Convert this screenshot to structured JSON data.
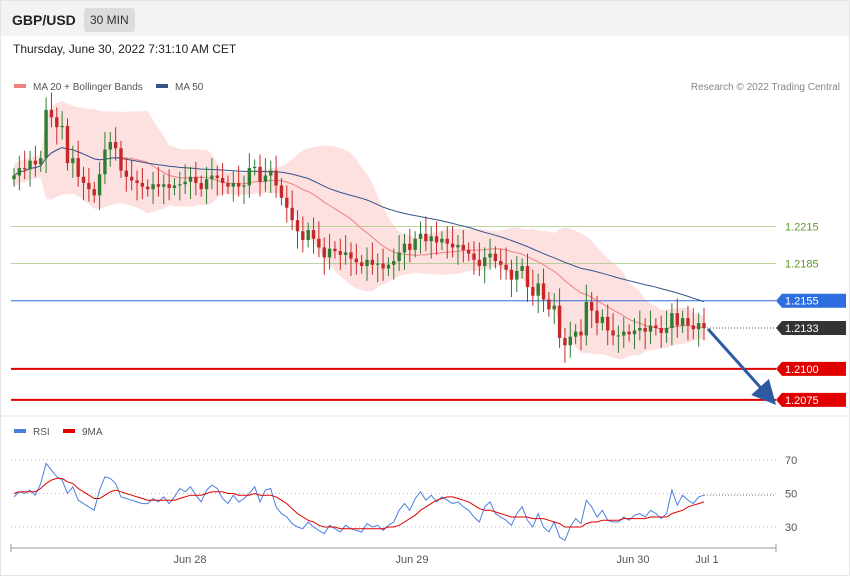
{
  "header": {
    "symbol": "GBP/USD",
    "timeframe": "30 MIN",
    "datetime": "Thursday, June 30, 2022 7:31:10 AM CET"
  },
  "legend_top": [
    {
      "label": "MA 20 + Bollinger Bands",
      "color": "#f08080"
    },
    {
      "label": "MA 50",
      "color": "#34558b"
    }
  ],
  "credit": "Research © 2022 Trading Central",
  "legend_bottom": [
    {
      "label": "RSI",
      "color": "#4a7fe0"
    },
    {
      "label": "9MA",
      "color": "#e00000"
    }
  ],
  "colors": {
    "bull": "#2e7d32",
    "bear": "#c62828",
    "band_fill": "#fde0e0",
    "ma20": "#f08080",
    "ma50": "#34558b",
    "level_green": "#a5c97f",
    "level_blue": "#2e6de0",
    "level_red": "#e00000",
    "current_price": "#333333",
    "arrow": "#2d5aa0"
  },
  "chart_data": [
    {
      "type": "candlestick",
      "title": "GBP/USD 30 MIN",
      "ylim": [
        1.2062,
        1.2325
      ],
      "x_ticks": [
        "Jun 28",
        "Jun 29",
        "Jun 30",
        "Jul 1"
      ],
      "levels": [
        {
          "value": 1.2215,
          "label": "1.2215",
          "style": "green-thin"
        },
        {
          "value": 1.2185,
          "label": "1.2185",
          "style": "green-thin"
        },
        {
          "value": 1.2155,
          "label": "1.2155",
          "style": "blue"
        },
        {
          "value": 1.21,
          "label": "1.2100",
          "style": "red-thick"
        },
        {
          "value": 1.2075,
          "label": "1.2075",
          "style": "red-thick"
        }
      ],
      "current_price": {
        "value": 1.2133,
        "label": "1.2133"
      },
      "forecast_arrow": {
        "from": 1.2133,
        "to": 1.2075
      },
      "series": [
        {
          "name": "MA 20 + Bollinger Bands"
        },
        {
          "name": "MA 50"
        }
      ],
      "close_path": [
        1.2256,
        1.2262,
        1.2261,
        1.2268,
        1.2265,
        1.227,
        1.2309,
        1.2303,
        1.2295,
        1.2296,
        1.2266,
        1.227,
        1.2255,
        1.225,
        1.2245,
        1.224,
        1.2257,
        1.2277,
        1.2283,
        1.2278,
        1.226,
        1.2255,
        1.2252,
        1.225,
        1.2247,
        1.2245,
        1.2249,
        1.2247,
        1.2249,
        1.2246,
        1.2248,
        1.2249,
        1.2251,
        1.2255,
        1.225,
        1.2245,
        1.2253,
        1.2256,
        1.2254,
        1.225,
        1.2247,
        1.225,
        1.2247,
        1.2248,
        1.2262,
        1.2263,
        1.2251,
        1.2256,
        1.226,
        1.2248,
        1.2238,
        1.223,
        1.222,
        1.2211,
        1.2204,
        1.2212,
        1.2205,
        1.2198,
        1.219,
        1.2197,
        1.2195,
        1.2192,
        1.2194,
        1.2189,
        1.2186,
        1.2183,
        1.2188,
        1.2184,
        1.2185,
        1.2181,
        1.2184,
        1.2187,
        1.2194,
        1.2201,
        1.2196,
        1.2205,
        1.2209,
        1.2203,
        1.2207,
        1.2202,
        1.2205,
        1.2201,
        1.2198,
        1.22,
        1.2196,
        1.2193,
        1.2188,
        1.2183,
        1.219,
        1.2193,
        1.2187,
        1.2184,
        1.218,
        1.2172,
        1.2179,
        1.2183,
        1.2166,
        1.2159,
        1.2169,
        1.2156,
        1.2148,
        1.2151,
        1.2125,
        1.2119,
        1.2126,
        1.213,
        1.2127,
        1.2154,
        1.2147,
        1.2137,
        1.2142,
        1.2131,
        1.2127,
        1.2127,
        1.213,
        1.2128,
        1.2131,
        1.2133,
        1.213,
        1.2135,
        1.2133,
        1.2129,
        1.2133,
        1.2145,
        1.2135,
        1.2141,
        1.2135,
        1.2132,
        1.2137,
        1.2133
      ]
    },
    {
      "type": "line",
      "title": "RSI",
      "ylim": [
        20,
        80
      ],
      "y_ticks": [
        {
          "value": 70,
          "label": "70"
        },
        {
          "value": 50,
          "label": "50"
        },
        {
          "value": 30,
          "label": "30"
        }
      ],
      "series": [
        {
          "name": "RSI",
          "values": [
            48,
            51,
            50,
            52,
            49,
            56,
            68,
            64,
            60,
            58,
            50,
            54,
            46,
            44,
            42,
            40,
            52,
            60,
            59,
            56,
            48,
            47,
            46,
            45,
            44,
            44,
            47,
            45,
            48,
            44,
            48,
            53,
            51,
            54,
            49,
            45,
            52,
            55,
            53,
            47,
            44,
            49,
            45,
            47,
            50,
            54,
            45,
            52,
            53,
            42,
            38,
            36,
            32,
            30,
            29,
            33,
            30,
            28,
            26,
            31,
            29,
            27,
            31,
            29,
            28,
            27,
            32,
            30,
            31,
            28,
            31,
            33,
            40,
            44,
            40,
            47,
            51,
            46,
            49,
            45,
            48,
            46,
            44,
            45,
            42,
            40,
            36,
            33,
            42,
            45,
            38,
            36,
            34,
            31,
            38,
            42,
            34,
            30,
            38,
            30,
            27,
            33,
            24,
            22,
            30,
            35,
            32,
            46,
            42,
            36,
            40,
            34,
            33,
            33,
            36,
            34,
            37,
            38,
            36,
            40,
            38,
            35,
            38,
            52,
            43,
            49,
            46,
            44,
            48,
            49
          ]
        },
        {
          "name": "9MA",
          "values": [
            50,
            51,
            51,
            51,
            51,
            53,
            56,
            58,
            59,
            59,
            57,
            56,
            53,
            51,
            49,
            47,
            47,
            49,
            51,
            52,
            51,
            50,
            49,
            48,
            47,
            46,
            46,
            46,
            46,
            46,
            46,
            47,
            48,
            49,
            49,
            49,
            50,
            51,
            51,
            51,
            50,
            50,
            49,
            49,
            49,
            50,
            49,
            49,
            49,
            48,
            46,
            44,
            41,
            38,
            36,
            34,
            33,
            31,
            30,
            30,
            30,
            29,
            29,
            29,
            29,
            29,
            29,
            29,
            29,
            29,
            30,
            30,
            31,
            33,
            35,
            37,
            40,
            42,
            44,
            46,
            47,
            48,
            48,
            47,
            46,
            45,
            43,
            41,
            40,
            40,
            39,
            38,
            37,
            36,
            36,
            36,
            36,
            35,
            35,
            35,
            34,
            33,
            32,
            30,
            30,
            30,
            30,
            32,
            33,
            33,
            34,
            34,
            34,
            34,
            35,
            35,
            35,
            35,
            35,
            36,
            36,
            36,
            36,
            38,
            39,
            40,
            42,
            43,
            44,
            45
          ]
        }
      ]
    }
  ]
}
